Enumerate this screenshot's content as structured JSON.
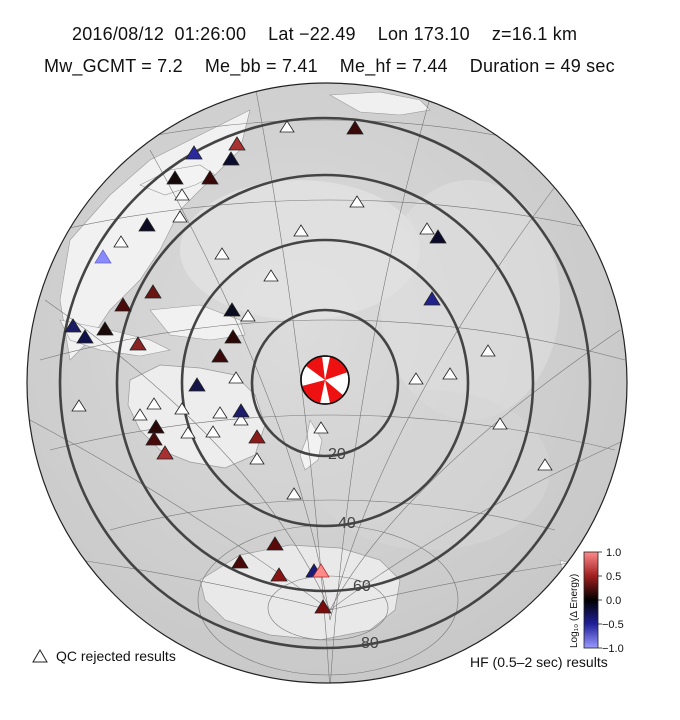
{
  "header": {
    "datetime": "2016/08/12  01:26:00",
    "lat": "Lat −22.49",
    "lon": "Lon 173.10",
    "depth": "z=16.1 km",
    "mw": "Mw_GCMT = 7.2",
    "me_bb": "Me_bb = 7.41",
    "me_hf": "Me_hf = 7.44",
    "duration": "Duration = 49 sec"
  },
  "distance_rings": {
    "labels": [
      "20",
      "40",
      "60",
      "80"
    ],
    "degrees": [
      20,
      40,
      60,
      80
    ]
  },
  "legend": {
    "qc_rejected": "QC rejected results",
    "hf_band": "HF (0.5–2 sec) results"
  },
  "colorbar": {
    "title": "Log₁₀ (Δ Energy)",
    "ticks": [
      "1.0",
      "0.5",
      "0.0",
      "−0.5",
      "−1.0"
    ],
    "range": [
      -1.0,
      1.0
    ],
    "colors": {
      "low": "#9a9aff",
      "mid": "#000000",
      "high": "#ff8a8a"
    }
  },
  "colors": {
    "ring": "#444444",
    "land_light": "#e6e6e6",
    "background": "#ffffff"
  },
  "icons": {
    "station": "triangle-icon",
    "epicenter": "beachball-icon"
  }
}
